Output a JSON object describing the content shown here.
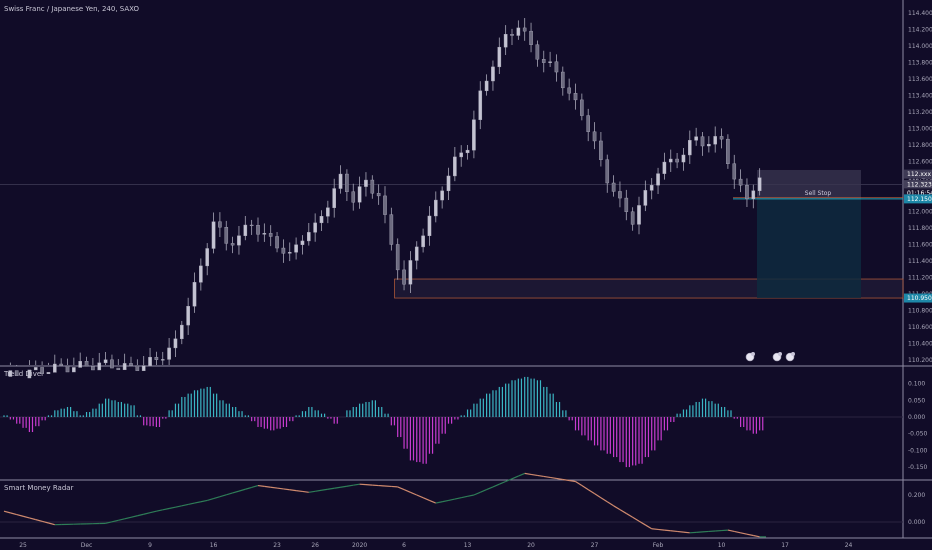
{
  "header": {
    "symbol_title": "Swiss Franc / Japanese Yen, 240, SAXO"
  },
  "colors": {
    "background": "#110c28",
    "candle": "#a9a8b8",
    "gridline": "#2a2540",
    "separator": "#8e8ba3",
    "osc_positive": "#3bb6c4",
    "osc_negative": "#c83ccf",
    "radar_green": "#2e7d57",
    "radar_orange": "#d08a6e",
    "zone_border": "#c0613a",
    "sell_line": "#26a6b8",
    "price_label_bg": "#1e88a8",
    "current_price_bg": "#44405a",
    "tp_box": "#0e2a3e",
    "sl_box": "#3a3550"
  },
  "price_axis": {
    "ticks": [
      "114.400",
      "114.200",
      "114.000",
      "113.800",
      "113.600",
      "113.400",
      "113.200",
      "113.000",
      "112.800",
      "112.600",
      "112.400",
      "112.200",
      "112.000",
      "111.800",
      "111.600",
      "111.400",
      "111.200",
      "111.000",
      "110.800",
      "110.600",
      "110.400",
      "110.200"
    ],
    "current_price_label": "112.323",
    "countdown_label": "01:16:54",
    "top_box_label": "112.xxx",
    "sell_stop_price_label": "112.150",
    "zone_price_label": "110.950"
  },
  "time_axis": {
    "labels": [
      {
        "text": "25",
        "idx": 3
      },
      {
        "text": "Dec",
        "idx": 13
      },
      {
        "text": "9",
        "idx": 23
      },
      {
        "text": "16",
        "idx": 33
      },
      {
        "text": "23",
        "idx": 43
      },
      {
        "text": "26",
        "idx": 49
      },
      {
        "text": "2020",
        "idx": 56
      },
      {
        "text": "6",
        "idx": 63
      },
      {
        "text": "13",
        "idx": 73
      },
      {
        "text": "20",
        "idx": 83
      },
      {
        "text": "27",
        "idx": 93
      },
      {
        "text": "Feb",
        "idx": 103
      },
      {
        "text": "10",
        "idx": 113
      },
      {
        "text": "17",
        "idx": 123
      },
      {
        "text": "24",
        "idx": 133
      }
    ]
  },
  "sell_stop": {
    "label": "Sell Stop",
    "entry": 112.15,
    "stop_top": 112.5,
    "target": 110.95
  },
  "zone": {
    "top": 111.18,
    "bottom": 110.95
  },
  "oscillator": {
    "title": "Trend Diver",
    "ticks": [
      "0.100",
      "0.050",
      "0.000",
      "-0.050",
      "-0.100",
      "-0.150"
    ]
  },
  "radar": {
    "title": "Smart Money Radar",
    "ticks": [
      "0.200",
      "0.000"
    ]
  },
  "chart_data": {
    "type": "candlestick",
    "title": "Swiss Franc / Japanese Yen, 240, SAXO",
    "ylim": [
      110.15,
      114.45
    ],
    "price_anchors": [
      [
        0,
        110.0
      ],
      [
        8,
        110.1
      ],
      [
        16,
        110.15
      ],
      [
        20,
        110.1
      ],
      [
        24,
        110.2
      ],
      [
        27,
        110.4
      ],
      [
        29,
        110.9
      ],
      [
        31,
        111.3
      ],
      [
        33,
        111.9
      ],
      [
        35,
        111.6
      ],
      [
        37,
        111.7
      ],
      [
        39,
        111.85
      ],
      [
        41,
        111.7
      ],
      [
        43,
        111.6
      ],
      [
        45,
        111.45
      ],
      [
        47,
        111.7
      ],
      [
        49,
        111.8
      ],
      [
        51,
        112.1
      ],
      [
        53,
        112.4
      ],
      [
        55,
        112.15
      ],
      [
        57,
        112.35
      ],
      [
        59,
        112.2
      ],
      [
        61,
        111.6
      ],
      [
        63,
        111.1
      ],
      [
        65,
        111.6
      ],
      [
        67,
        111.9
      ],
      [
        69,
        112.3
      ],
      [
        71,
        112.6
      ],
      [
        73,
        112.8
      ],
      [
        75,
        113.4
      ],
      [
        77,
        113.8
      ],
      [
        79,
        114.1
      ],
      [
        81,
        114.25
      ],
      [
        83,
        114.0
      ],
      [
        85,
        113.8
      ],
      [
        87,
        113.7
      ],
      [
        89,
        113.4
      ],
      [
        91,
        113.2
      ],
      [
        93,
        112.8
      ],
      [
        95,
        112.4
      ],
      [
        97,
        112.1
      ],
      [
        99,
        111.9
      ],
      [
        101,
        112.2
      ],
      [
        103,
        112.5
      ],
      [
        105,
        112.6
      ],
      [
        107,
        112.7
      ],
      [
        109,
        112.9
      ],
      [
        111,
        112.8
      ],
      [
        113,
        112.9
      ],
      [
        115,
        112.35
      ],
      [
        117,
        112.2
      ],
      [
        119,
        112.35
      ]
    ],
    "oscillator_anchors": [
      [
        0,
        0.005
      ],
      [
        2,
        -0.02
      ],
      [
        4,
        -0.045
      ],
      [
        6,
        -0.01
      ],
      [
        8,
        0.02
      ],
      [
        10,
        0.03
      ],
      [
        12,
        0.005
      ],
      [
        14,
        0.025
      ],
      [
        16,
        0.055
      ],
      [
        18,
        0.045
      ],
      [
        20,
        0.035
      ],
      [
        22,
        -0.025
      ],
      [
        24,
        -0.03
      ],
      [
        26,
        0.02
      ],
      [
        28,
        0.06
      ],
      [
        30,
        0.08
      ],
      [
        32,
        0.09
      ],
      [
        34,
        0.05
      ],
      [
        36,
        0.03
      ],
      [
        38,
        0.005
      ],
      [
        40,
        -0.03
      ],
      [
        42,
        -0.04
      ],
      [
        44,
        -0.03
      ],
      [
        46,
        0.005
      ],
      [
        48,
        0.03
      ],
      [
        50,
        0.01
      ],
      [
        52,
        -0.02
      ],
      [
        54,
        0.02
      ],
      [
        56,
        0.04
      ],
      [
        58,
        0.05
      ],
      [
        60,
        0.01
      ],
      [
        62,
        -0.06
      ],
      [
        64,
        -0.13
      ],
      [
        66,
        -0.14
      ],
      [
        68,
        -0.08
      ],
      [
        70,
        -0.02
      ],
      [
        72,
        0.005
      ],
      [
        74,
        0.04
      ],
      [
        76,
        0.07
      ],
      [
        78,
        0.09
      ],
      [
        80,
        0.11
      ],
      [
        82,
        0.12
      ],
      [
        84,
        0.11
      ],
      [
        86,
        0.07
      ],
      [
        88,
        0.02
      ],
      [
        90,
        -0.04
      ],
      [
        92,
        -0.07
      ],
      [
        94,
        -0.1
      ],
      [
        96,
        -0.12
      ],
      [
        98,
        -0.15
      ],
      [
        100,
        -0.14
      ],
      [
        102,
        -0.1
      ],
      [
        104,
        -0.04
      ],
      [
        106,
        0.01
      ],
      [
        108,
        0.035
      ],
      [
        110,
        0.055
      ],
      [
        112,
        0.04
      ],
      [
        114,
        0.02
      ],
      [
        116,
        -0.03
      ],
      [
        118,
        -0.05
      ],
      [
        119,
        -0.04
      ]
    ],
    "radar_anchors": [
      [
        0,
        0.08
      ],
      [
        8,
        -0.02
      ],
      [
        16,
        -0.01
      ],
      [
        24,
        0.08
      ],
      [
        32,
        0.16
      ],
      [
        40,
        0.27
      ],
      [
        48,
        0.22
      ],
      [
        56,
        0.28
      ],
      [
        62,
        0.26
      ],
      [
        68,
        0.14
      ],
      [
        74,
        0.2
      ],
      [
        82,
        0.36
      ],
      [
        90,
        0.3
      ],
      [
        96,
        0.12
      ],
      [
        102,
        -0.05
      ],
      [
        108,
        -0.08
      ],
      [
        114,
        -0.06
      ],
      [
        119,
        -0.11
      ]
    ]
  }
}
